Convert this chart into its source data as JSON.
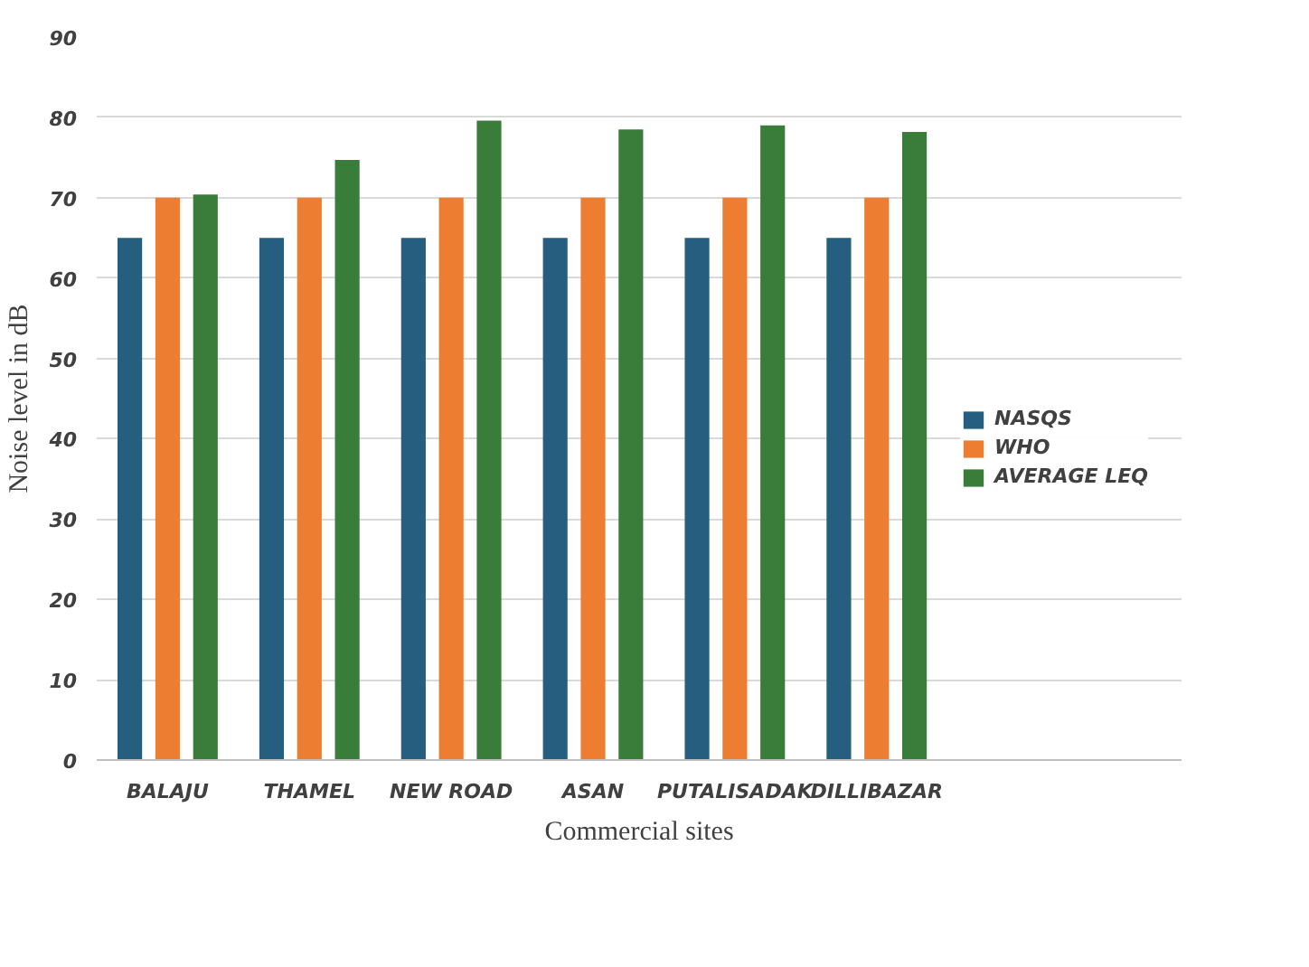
{
  "chart_data": {
    "type": "bar",
    "xlabel": "Commercial sites",
    "ylabel": "Noise level in dB",
    "categories": [
      "BALAJU",
      "THAMEL",
      "NEW ROAD",
      "ASAN",
      "PUTALISADAK",
      "DILLIBAZAR"
    ],
    "series": [
      {
        "name": "NASQS",
        "color": "#255e7e",
        "values": [
          65,
          65,
          65,
          65,
          65,
          65
        ]
      },
      {
        "name": "WHO",
        "color": "#ed7d31",
        "values": [
          70,
          70,
          70,
          70,
          70,
          70
        ]
      },
      {
        "name": "AVERAGE LEQ",
        "color": "#3a7d3a",
        "values": [
          70.4,
          74.7,
          79.6,
          78.5,
          79.0,
          78.2
        ]
      }
    ],
    "ylim": [
      0,
      90
    ],
    "yticks": [
      0,
      10,
      20,
      30,
      40,
      50,
      60,
      70,
      80,
      90
    ],
    "grid": "y",
    "legend": "right"
  }
}
